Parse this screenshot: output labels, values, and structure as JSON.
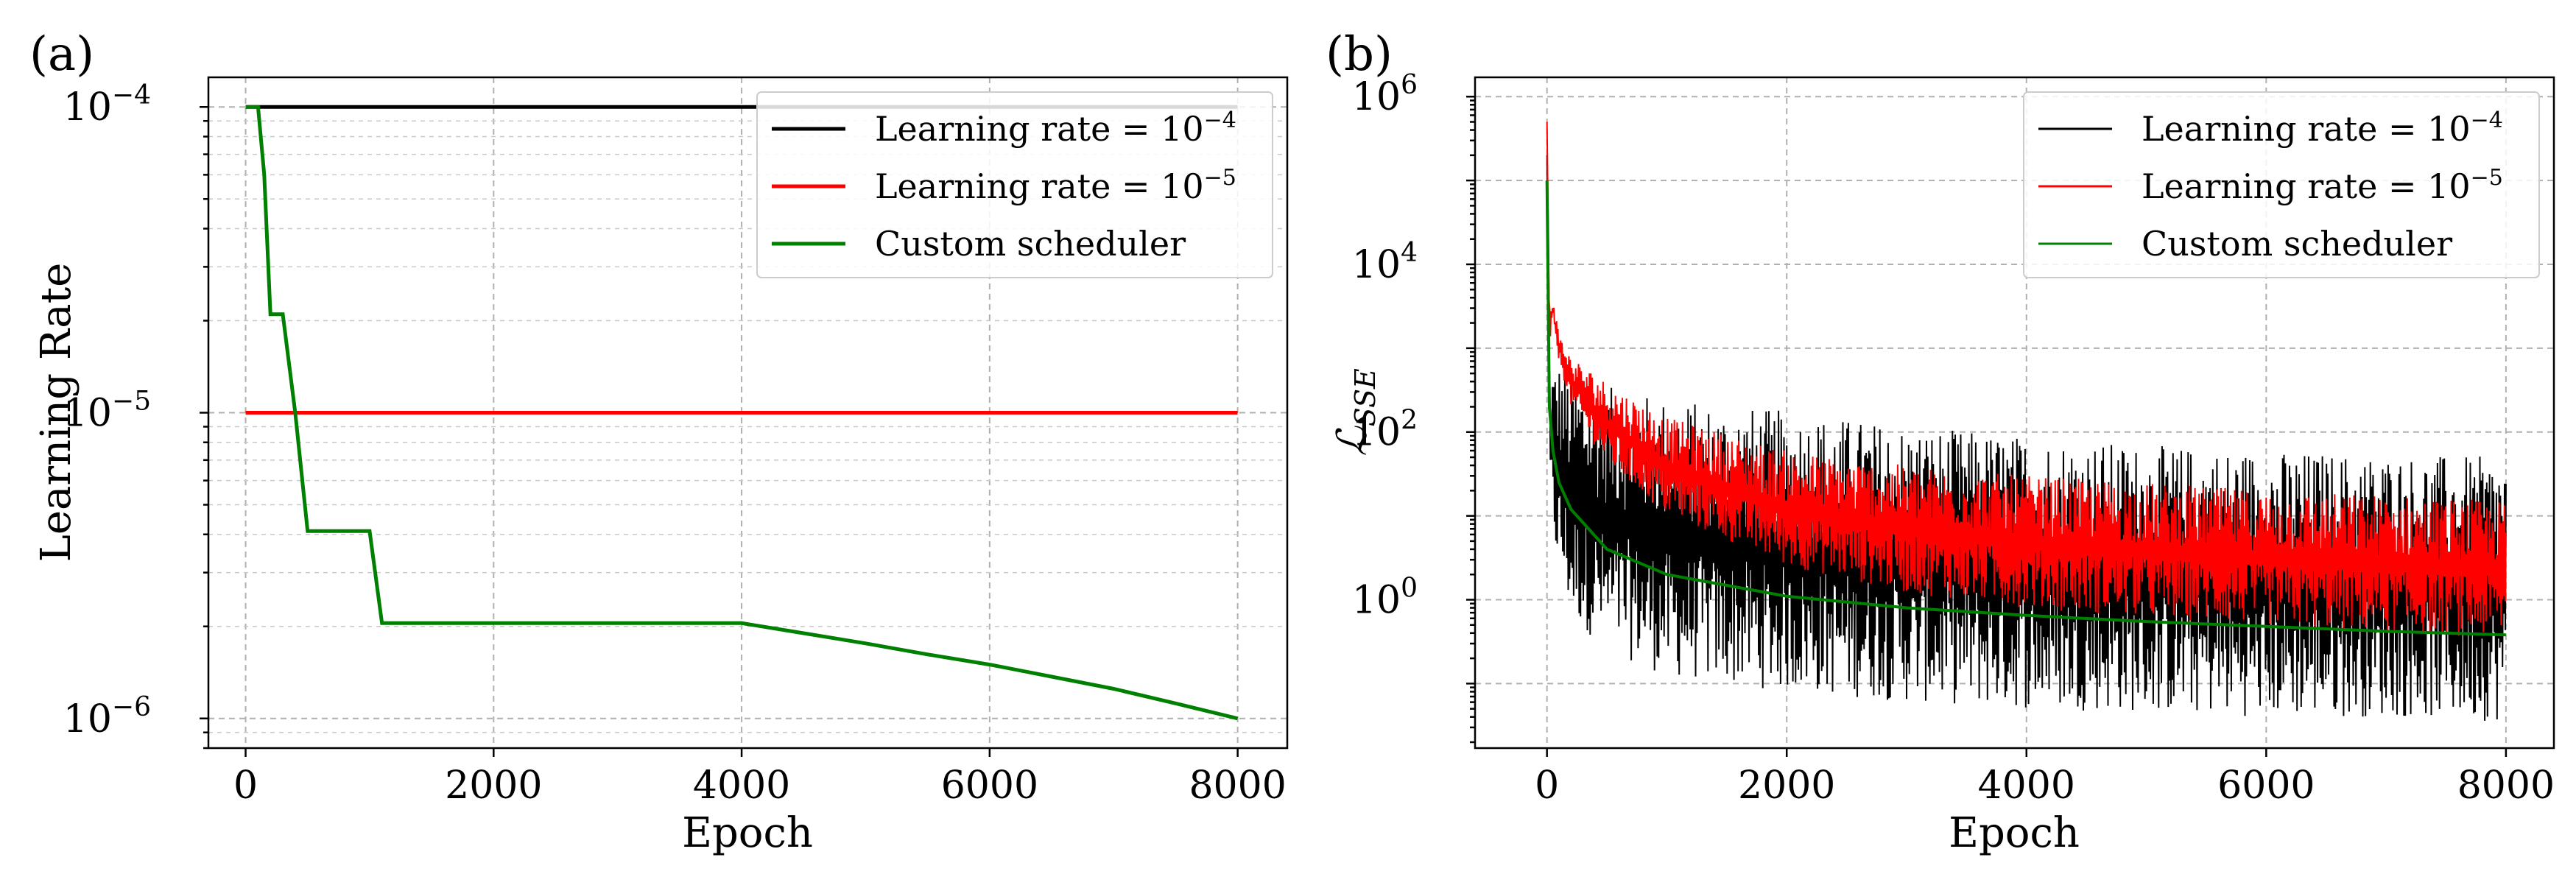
{
  "chart_data": [
    {
      "panel": "(a)",
      "type": "line",
      "xlabel": "Epoch",
      "ylabel": "Learning Rate",
      "yscale": "log",
      "xlim": [
        -300,
        8400
      ],
      "ylim": [
        8e-07,
        0.000125
      ],
      "xticks": [
        0,
        2000,
        4000,
        6000,
        8000
      ],
      "xtick_labels": [
        "0",
        "2000",
        "4000",
        "6000",
        "8000"
      ],
      "yticks": [
        1e-06,
        1e-05,
        0.0001
      ],
      "ytick_labels": [
        {
          "base": "10",
          "exp": "−6"
        },
        {
          "base": "10",
          "exp": "−5"
        },
        {
          "base": "10",
          "exp": "−4"
        }
      ],
      "grid": true,
      "legend_position": "top-right",
      "series": [
        {
          "name": "Learning rate = ",
          "sup_base": "10",
          "sup_exp": "−4",
          "color": "#000000",
          "x": [
            0,
            8000
          ],
          "y": [
            0.0001,
            0.0001
          ]
        },
        {
          "name": "Learning rate = ",
          "sup_base": "10",
          "sup_exp": "−5",
          "color": "#ff0000",
          "x": [
            0,
            8000
          ],
          "y": [
            1e-05,
            1e-05
          ]
        },
        {
          "name": "Custom scheduler",
          "color": "#008000",
          "x": [
            0,
            100,
            150,
            200,
            300,
            400,
            500,
            1000,
            1100,
            4000,
            4500,
            5000,
            5500,
            6000,
            6500,
            7000,
            7500,
            8000
          ],
          "y": [
            0.0001,
            0.0001,
            6e-05,
            2.1e-05,
            2.1e-05,
            1e-05,
            4.1e-06,
            4.1e-06,
            2.05e-06,
            2.05e-06,
            1.9e-06,
            1.76e-06,
            1.62e-06,
            1.5e-06,
            1.37e-06,
            1.25e-06,
            1.12e-06,
            1e-06
          ]
        }
      ]
    },
    {
      "panel": "(b)",
      "type": "line",
      "xlabel": "Epoch",
      "ylabel_base": "ℒ",
      "ylabel_sub": "SSE",
      "yscale": "log",
      "xlim": [
        -600,
        8400
      ],
      "ylim": [
        0.017,
        1700000.0
      ],
      "xticks": [
        0,
        2000,
        4000,
        6000,
        8000
      ],
      "xtick_labels": [
        "0",
        "2000",
        "4000",
        "6000",
        "8000"
      ],
      "yticks": [
        1,
        100,
        10000,
        1000000
      ],
      "ytick_labels": [
        {
          "base": "10",
          "exp": "0"
        },
        {
          "base": "10",
          "exp": "2"
        },
        {
          "base": "10",
          "exp": "4"
        },
        {
          "base": "10",
          "exp": "6"
        }
      ],
      "grid": true,
      "legend_position": "top-right",
      "series": [
        {
          "name": "Learning rate = ",
          "sup_base": "10",
          "sup_exp": "−4",
          "color": "#000000",
          "x": [
            0,
            20,
            50,
            100,
            200,
            500,
            1000,
            2000,
            3000,
            4000,
            5000,
            6000,
            7000,
            8000
          ],
          "lower": [
            200000,
            20,
            5,
            2,
            0.6,
            0.25,
            0.12,
            0.08,
            0.06,
            0.05,
            0.045,
            0.04,
            0.04,
            0.035
          ],
          "upper": [
            200000,
            900,
            600,
            700,
            500,
            350,
            250,
            180,
            120,
            90,
            70,
            60,
            55,
            50
          ]
        },
        {
          "name": "Learning rate = ",
          "sup_base": "10",
          "sup_exp": "−5",
          "color": "#ff0000",
          "x": [
            0,
            20,
            50,
            100,
            200,
            500,
            1000,
            2000,
            3000,
            4000,
            5000,
            6000,
            7000,
            8000
          ],
          "lower": [
            500000,
            1000,
            2000,
            700,
            200,
            40,
            10,
            2.5,
            1.2,
            0.8,
            0.6,
            0.5,
            0.4,
            0.35
          ],
          "upper": [
            500000,
            4000,
            4000,
            1500,
            800,
            400,
            150,
            60,
            40,
            30,
            25,
            20,
            18,
            15
          ]
        },
        {
          "name": "Custom scheduler",
          "color": "#008000",
          "x": [
            0,
            20,
            50,
            100,
            200,
            500,
            1000,
            2000,
            3000,
            4000,
            5000,
            6000,
            7000,
            8000
          ],
          "y": [
            100000,
            200,
            60,
            25,
            12,
            4,
            2,
            1.1,
            0.8,
            0.65,
            0.55,
            0.48,
            0.42,
            0.38
          ]
        }
      ]
    }
  ]
}
